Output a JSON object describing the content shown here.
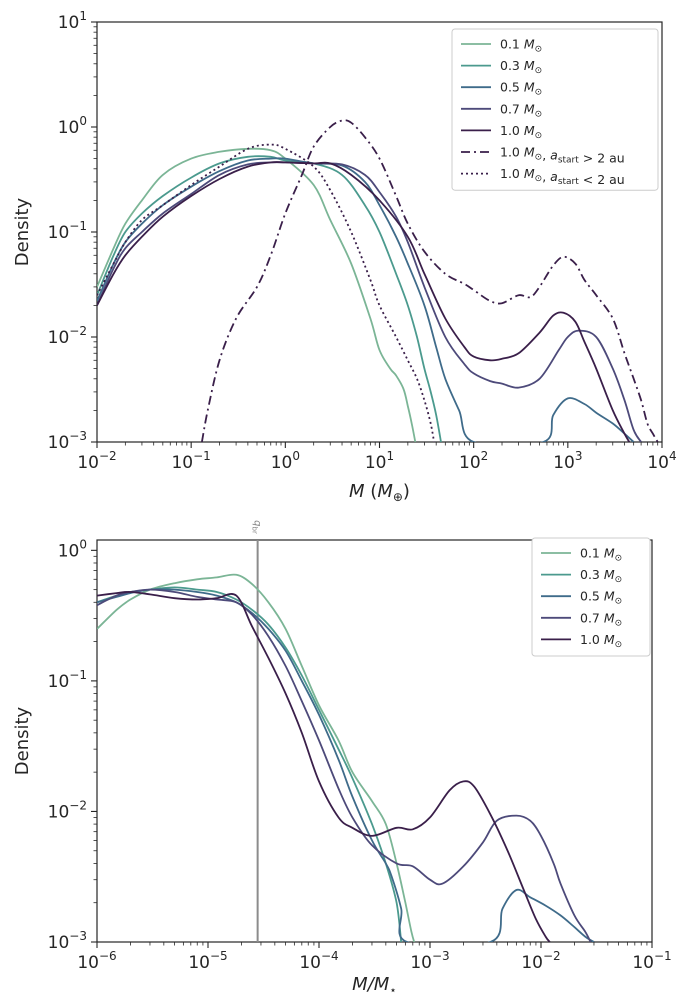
{
  "chart_data": [
    {
      "type": "line",
      "xlabel": "M (M⊕)",
      "ylabel": "Density",
      "xscale": "log",
      "yscale": "log",
      "xlim": [
        0.01,
        10000
      ],
      "ylim": [
        0.001,
        10
      ],
      "xticks": [
        {
          "base": "10",
          "exp": "−2"
        },
        {
          "base": "10",
          "exp": "−1"
        },
        {
          "base": "10",
          "exp": "0"
        },
        {
          "base": "10",
          "exp": "1"
        },
        {
          "base": "10",
          "exp": "2"
        },
        {
          "base": "10",
          "exp": "3"
        },
        {
          "base": "10",
          "exp": "4"
        }
      ],
      "yticks": [
        {
          "base": "10",
          "exp": "−3"
        },
        {
          "base": "10",
          "exp": "−2"
        },
        {
          "base": "10",
          "exp": "−1"
        },
        {
          "base": "10",
          "exp": "0"
        },
        {
          "base": "10",
          "exp": "1"
        }
      ],
      "legend_loc": "upper right",
      "series": [
        {
          "name": "0.1 M⊙",
          "color": "#7bb596",
          "style": "solid",
          "x": [
            0.01,
            0.015,
            0.02,
            0.03,
            0.05,
            0.1,
            0.2,
            0.4,
            0.7,
            1,
            2,
            3,
            5,
            8,
            10,
            13,
            15,
            18,
            20,
            22,
            24
          ],
          "y": [
            0.03,
            0.07,
            0.12,
            0.2,
            0.35,
            0.5,
            0.58,
            0.62,
            0.6,
            0.5,
            0.28,
            0.13,
            0.05,
            0.015,
            0.0075,
            0.005,
            0.0043,
            0.0032,
            0.0022,
            0.0015,
            0.001
          ]
        },
        {
          "name": "0.3 M⊙",
          "color": "#4b9a8e",
          "style": "solid",
          "x": [
            0.01,
            0.015,
            0.02,
            0.03,
            0.05,
            0.1,
            0.2,
            0.4,
            0.7,
            1,
            2,
            4,
            7,
            10,
            15,
            20,
            25,
            30,
            35,
            40,
            45
          ],
          "y": [
            0.025,
            0.06,
            0.1,
            0.15,
            0.22,
            0.33,
            0.45,
            0.52,
            0.52,
            0.48,
            0.45,
            0.35,
            0.18,
            0.1,
            0.04,
            0.02,
            0.01,
            0.005,
            0.003,
            0.0018,
            0.001
          ]
        },
        {
          "name": "0.5 M⊙",
          "color": "#3f6b8a",
          "style": "solid",
          "x": [
            0.01,
            0.015,
            0.02,
            0.03,
            0.05,
            0.1,
            0.2,
            0.4,
            0.7,
            1,
            2,
            4,
            7,
            10,
            15,
            20,
            30,
            40,
            50,
            70,
            100,
            550,
            700,
            1000,
            1500,
            2000,
            3000,
            4000,
            5000
          ],
          "y": [
            0.022,
            0.05,
            0.08,
            0.12,
            0.18,
            0.27,
            0.38,
            0.48,
            0.5,
            0.5,
            0.45,
            0.43,
            0.3,
            0.18,
            0.09,
            0.05,
            0.02,
            0.008,
            0.004,
            0.002,
            0.001,
            0.001,
            0.0018,
            0.0026,
            0.0023,
            0.0019,
            0.0015,
            0.0012,
            0.001
          ]
        },
        {
          "name": "0.7 M⊙",
          "color": "#4d4a7a",
          "style": "solid",
          "x": [
            0.01,
            0.015,
            0.02,
            0.03,
            0.05,
            0.1,
            0.2,
            0.4,
            0.7,
            1,
            2,
            4,
            7,
            10,
            15,
            20,
            30,
            50,
            80,
            100,
            150,
            200,
            300,
            500,
            800,
            1000,
            1300,
            2000,
            3000,
            4000,
            5000,
            6000
          ],
          "y": [
            0.02,
            0.045,
            0.07,
            0.1,
            0.15,
            0.23,
            0.35,
            0.44,
            0.46,
            0.46,
            0.45,
            0.44,
            0.35,
            0.24,
            0.14,
            0.08,
            0.03,
            0.01,
            0.0055,
            0.0045,
            0.0038,
            0.0036,
            0.0033,
            0.004,
            0.0075,
            0.01,
            0.0115,
            0.01,
            0.005,
            0.0025,
            0.0013,
            0.001
          ]
        },
        {
          "name": "1.0 M⊙",
          "color": "#3a1f4a",
          "style": "solid",
          "x": [
            0.01,
            0.015,
            0.02,
            0.03,
            0.05,
            0.1,
            0.2,
            0.4,
            0.7,
            1,
            2,
            3,
            5,
            10,
            20,
            30,
            50,
            80,
            100,
            150,
            200,
            300,
            500,
            700,
            900,
            1200,
            1500,
            2000,
            3000,
            4000,
            4500
          ],
          "y": [
            0.02,
            0.04,
            0.06,
            0.09,
            0.14,
            0.22,
            0.32,
            0.42,
            0.46,
            0.46,
            0.45,
            0.45,
            0.35,
            0.2,
            0.09,
            0.04,
            0.015,
            0.008,
            0.0065,
            0.006,
            0.0062,
            0.007,
            0.011,
            0.016,
            0.017,
            0.014,
            0.009,
            0.005,
            0.002,
            0.0012,
            0.001
          ]
        },
        {
          "name": "1.0 M⊙, a_start > 2 au",
          "color": "#3a1f4a",
          "style": "dashdot",
          "x": [
            0.13,
            0.15,
            0.2,
            0.3,
            0.5,
            0.7,
            1,
            1.5,
            2,
            3,
            4,
            5,
            7,
            10,
            15,
            20,
            30,
            50,
            80,
            100,
            150,
            200,
            300,
            400,
            500,
            700,
            900,
            1200,
            1500,
            2000,
            3000,
            4000,
            5000,
            6000,
            7000,
            8000,
            9000
          ],
          "y": [
            0.001,
            0.002,
            0.006,
            0.015,
            0.03,
            0.06,
            0.15,
            0.35,
            0.65,
            1.0,
            1.15,
            1.1,
            0.8,
            0.5,
            0.22,
            0.12,
            0.065,
            0.04,
            0.032,
            0.028,
            0.022,
            0.021,
            0.025,
            0.024,
            0.03,
            0.048,
            0.058,
            0.05,
            0.035,
            0.025,
            0.015,
            0.007,
            0.004,
            0.0025,
            0.0015,
            0.0012,
            0.001
          ]
        },
        {
          "name": "1.0 M⊙, a_start < 2 au",
          "color": "#3a1f4a",
          "style": "dotted",
          "x": [
            0.01,
            0.015,
            0.02,
            0.03,
            0.05,
            0.1,
            0.2,
            0.4,
            0.7,
            1,
            2,
            3,
            5,
            8,
            10,
            15,
            20,
            25,
            30,
            35,
            38
          ],
          "y": [
            0.025,
            0.05,
            0.08,
            0.13,
            0.18,
            0.28,
            0.42,
            0.62,
            0.68,
            0.62,
            0.42,
            0.25,
            0.1,
            0.035,
            0.02,
            0.01,
            0.006,
            0.004,
            0.0025,
            0.0015,
            0.001
          ]
        }
      ]
    },
    {
      "type": "line",
      "xlabel": "M/M⋆",
      "ylabel": "Density",
      "xscale": "log",
      "yscale": "log",
      "xlim": [
        1e-06,
        0.1
      ],
      "ylim": [
        0.001,
        1.2
      ],
      "xticks": [
        {
          "base": "10",
          "exp": "−6"
        },
        {
          "base": "10",
          "exp": "−5"
        },
        {
          "base": "10",
          "exp": "−4"
        },
        {
          "base": "10",
          "exp": "−3"
        },
        {
          "base": "10",
          "exp": "−2"
        },
        {
          "base": "10",
          "exp": "−1"
        }
      ],
      "yticks": [
        {
          "base": "10",
          "exp": "−3"
        },
        {
          "base": "10",
          "exp": "−2"
        },
        {
          "base": "10",
          "exp": "−1"
        },
        {
          "base": "10",
          "exp": "0"
        }
      ],
      "legend_loc": "upper right",
      "vline": {
        "x": 2.8e-05,
        "label": "q_br"
      },
      "series": [
        {
          "name": "0.1 M⊙",
          "color": "#7bb596",
          "style": "solid",
          "x": [
            1e-06,
            1.5e-06,
            2e-06,
            3e-06,
            5e-06,
            8e-06,
            1.2e-05,
            1.8e-05,
            2.5e-05,
            3.5e-05,
            5e-05,
            7e-05,
            0.0001,
            0.00015,
            0.0002,
            0.0003,
            0.0004,
            0.0005,
            0.0006,
            0.00068,
            0.00072
          ],
          "y": [
            0.25,
            0.35,
            0.42,
            0.5,
            0.56,
            0.6,
            0.62,
            0.65,
            0.55,
            0.4,
            0.25,
            0.13,
            0.065,
            0.035,
            0.02,
            0.012,
            0.008,
            0.004,
            0.002,
            0.0012,
            0.001
          ]
        },
        {
          "name": "0.3 M⊙",
          "color": "#4b9a8e",
          "style": "solid",
          "x": [
            1e-06,
            1.5e-06,
            2e-06,
            3e-06,
            5e-06,
            8e-06,
            1.2e-05,
            1.8e-05,
            2.5e-05,
            3.5e-05,
            5e-05,
            7e-05,
            0.0001,
            0.00015,
            0.0002,
            0.0003,
            0.0004,
            0.0005,
            0.00055
          ],
          "y": [
            0.4,
            0.45,
            0.48,
            0.5,
            0.52,
            0.5,
            0.48,
            0.42,
            0.35,
            0.27,
            0.18,
            0.11,
            0.06,
            0.03,
            0.018,
            0.008,
            0.004,
            0.002,
            0.001
          ]
        },
        {
          "name": "0.5 M⊙",
          "color": "#3f6b8a",
          "style": "solid",
          "x": [
            1e-06,
            1.5e-06,
            2e-06,
            3e-06,
            5e-06,
            8e-06,
            1.2e-05,
            1.8e-05,
            2.5e-05,
            3.5e-05,
            5e-05,
            7e-05,
            0.0001,
            0.00015,
            0.0002,
            0.0003,
            0.0004,
            0.00045,
            0.00055,
            0.00062,
            0.0035,
            0.0045,
            0.006,
            0.008,
            0.011,
            0.015,
            0.02,
            0.025,
            0.03
          ],
          "y": [
            0.4,
            0.44,
            0.47,
            0.5,
            0.5,
            0.48,
            0.45,
            0.4,
            0.33,
            0.25,
            0.17,
            0.1,
            0.055,
            0.025,
            0.013,
            0.006,
            0.004,
            0.0032,
            0.0018,
            0.001,
            0.001,
            0.0018,
            0.0025,
            0.0022,
            0.0019,
            0.0016,
            0.0013,
            0.0011,
            0.001
          ]
        },
        {
          "name": "0.7 M⊙",
          "color": "#4d4a7a",
          "style": "solid",
          "x": [
            1e-06,
            1.5e-06,
            2e-06,
            3e-06,
            5e-06,
            8e-06,
            1.2e-05,
            1.8e-05,
            2.5e-05,
            3.5e-05,
            5e-05,
            7e-05,
            0.0001,
            0.00015,
            0.0002,
            0.0003,
            0.0005,
            0.0007,
            0.001,
            0.0013,
            0.002,
            0.003,
            0.004,
            0.006,
            0.008,
            0.01,
            0.013,
            0.015,
            0.02,
            0.025,
            0.028
          ],
          "y": [
            0.38,
            0.45,
            0.48,
            0.5,
            0.48,
            0.44,
            0.42,
            0.4,
            0.32,
            0.22,
            0.13,
            0.07,
            0.035,
            0.015,
            0.009,
            0.0055,
            0.004,
            0.0038,
            0.003,
            0.0028,
            0.0038,
            0.0058,
            0.0085,
            0.0093,
            0.0085,
            0.0065,
            0.004,
            0.0028,
            0.0016,
            0.0012,
            0.001
          ]
        },
        {
          "name": "1.0 M⊙",
          "color": "#3a1f4a",
          "style": "solid",
          "x": [
            1e-06,
            1.5e-06,
            2e-06,
            3e-06,
            5e-06,
            8e-06,
            1.2e-05,
            1.8e-05,
            2.5e-05,
            3.5e-05,
            5e-05,
            7e-05,
            0.0001,
            0.00015,
            0.0002,
            0.0003,
            0.0005,
            0.0007,
            0.001,
            0.0015,
            0.002,
            0.0025,
            0.0035,
            0.005,
            0.007,
            0.009,
            0.011,
            0.012
          ],
          "y": [
            0.45,
            0.47,
            0.48,
            0.46,
            0.43,
            0.42,
            0.43,
            0.45,
            0.26,
            0.15,
            0.08,
            0.04,
            0.017,
            0.009,
            0.0075,
            0.0065,
            0.0075,
            0.0073,
            0.009,
            0.0145,
            0.017,
            0.0155,
            0.0095,
            0.005,
            0.0025,
            0.0015,
            0.0011,
            0.001
          ]
        }
      ]
    }
  ]
}
